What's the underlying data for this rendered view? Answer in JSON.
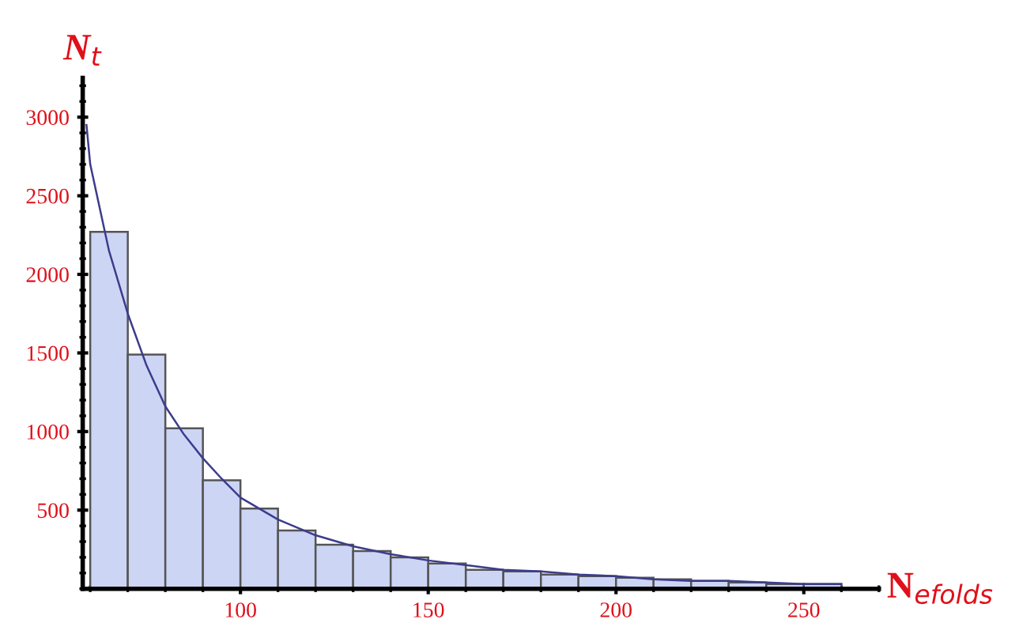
{
  "chart_data": {
    "type": "histogram",
    "xlabel": "N$_{efolds}$",
    "ylabel": "N$_{t}$",
    "bins": [
      60,
      70,
      80,
      90,
      100,
      110,
      120,
      130,
      140,
      150,
      160,
      170,
      180,
      190,
      200,
      210,
      220,
      230,
      240,
      250,
      260
    ],
    "values": [
      2270,
      1490,
      1020,
      690,
      510,
      370,
      280,
      240,
      200,
      160,
      120,
      110,
      90,
      80,
      70,
      60,
      50,
      40,
      30,
      30
    ],
    "color": "#cdd5f5",
    "series": [
      {
        "type": "line",
        "color": "#3c3c8c",
        "x": [
          59,
          60,
          65,
          70,
          75,
          80,
          85,
          90,
          95,
          100,
          110,
          120,
          130,
          140,
          150,
          160,
          170,
          180,
          190,
          200,
          210,
          220,
          230,
          240,
          250,
          260
        ],
        "values": [
          2950,
          2700,
          2150,
          1750,
          1420,
          1160,
          980,
          830,
          700,
          580,
          440,
          340,
          270,
          220,
          180,
          150,
          120,
          110,
          90,
          80,
          60,
          50,
          50,
          40,
          30,
          30
        ]
      }
    ],
    "xlim": [
      58,
      270
    ],
    "ylim": [
      0,
      3250
    ],
    "xticks": [
      100,
      150,
      200,
      250
    ],
    "yticks": [
      500,
      1000,
      1500,
      2000,
      2500,
      3000
    ],
    "grid": false
  }
}
